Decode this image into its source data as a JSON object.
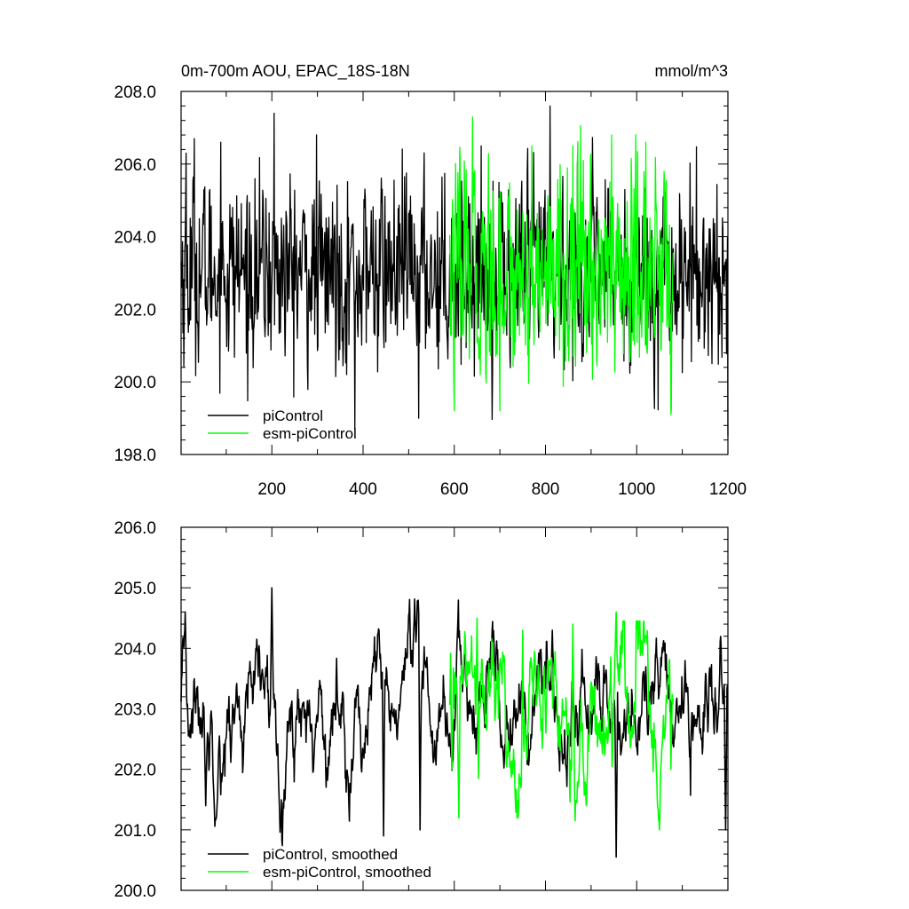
{
  "chart_data": [
    {
      "type": "line",
      "title": "0m-700m AOU, EPAC_18S-18N",
      "units": "mmol/m^3",
      "xlim": [
        1,
        1200
      ],
      "ylim": [
        198.0,
        208.0
      ],
      "x_ticks": [
        "200",
        "400",
        "600",
        "800",
        "1000",
        "1200"
      ],
      "y_ticks": [
        "198.0",
        "200.0",
        "202.0",
        "204.0",
        "206.0",
        "208.0"
      ],
      "grid": false,
      "legend_position": "bottom-left",
      "series": [
        {
          "name": "piControl",
          "color": "#000000",
          "x_start": 1,
          "x_end": 1200,
          "stats": {
            "mean": 203.0,
            "std": 1.25,
            "min": 198.5,
            "max": 207.6
          },
          "peaks": [
            [
              12,
              206.3
            ],
            [
              30,
              206.7
            ],
            [
              88,
              206.6
            ],
            [
              205,
              207.4
            ],
            [
              298,
              206.8
            ],
            [
              382,
              198.7
            ],
            [
              522,
              199.0
            ],
            [
              810,
              207.6
            ],
            [
              1060,
              205.6
            ],
            [
              1200,
              198.5
            ]
          ]
        },
        {
          "name": "esm-piControl",
          "color": "#00ff00",
          "x_start": 590,
          "x_end": 1080,
          "stats": {
            "mean": 203.0,
            "std": 1.45,
            "min": 199.1,
            "max": 207.3
          },
          "peaks": [
            [
              600,
              199.2
            ],
            [
              640,
              207.3
            ],
            [
              700,
              199.2
            ],
            [
              770,
              206.5
            ],
            [
              860,
              206.5
            ],
            [
              890,
              200.8
            ],
            [
              945,
              206.8
            ],
            [
              1020,
              206.6
            ],
            [
              1075,
              199.1
            ]
          ]
        }
      ]
    },
    {
      "type": "line",
      "xlim": [
        1,
        1200
      ],
      "ylim": [
        200.0,
        206.0
      ],
      "y_ticks": [
        "200.0",
        "201.0",
        "202.0",
        "203.0",
        "204.0",
        "205.0",
        "206.0"
      ],
      "grid": false,
      "legend_position": "bottom-left",
      "series": [
        {
          "name": "piControl, smoothed",
          "color": "#000000",
          "x_start": 1,
          "x_end": 1200,
          "stats": {
            "mean": 203.0,
            "std": 0.62,
            "min": 200.55,
            "max": 205.0
          },
          "peaks": [
            [
              10,
              204.6
            ],
            [
              55,
              201.4
            ],
            [
              200,
              205.0
            ],
            [
              445,
              200.9
            ],
            [
              525,
              201.0
            ],
            [
              815,
              204.3
            ],
            [
              955,
              200.55
            ],
            [
              1195,
              201.0
            ]
          ]
        },
        {
          "name": "esm-piControl, smoothed",
          "color": "#00ff00",
          "x_start": 590,
          "x_end": 1080,
          "stats": {
            "mean": 203.0,
            "std": 0.75,
            "min": 201.0,
            "max": 204.6
          },
          "peaks": [
            [
              595,
              202.0
            ],
            [
              610,
              201.2
            ],
            [
              650,
              204.5
            ],
            [
              750,
              204.3
            ],
            [
              860,
              204.4
            ],
            [
              890,
              201.4
            ],
            [
              955,
              204.6
            ],
            [
              1050,
              201.0
            ],
            [
              1075,
              202.0
            ]
          ]
        }
      ]
    }
  ]
}
